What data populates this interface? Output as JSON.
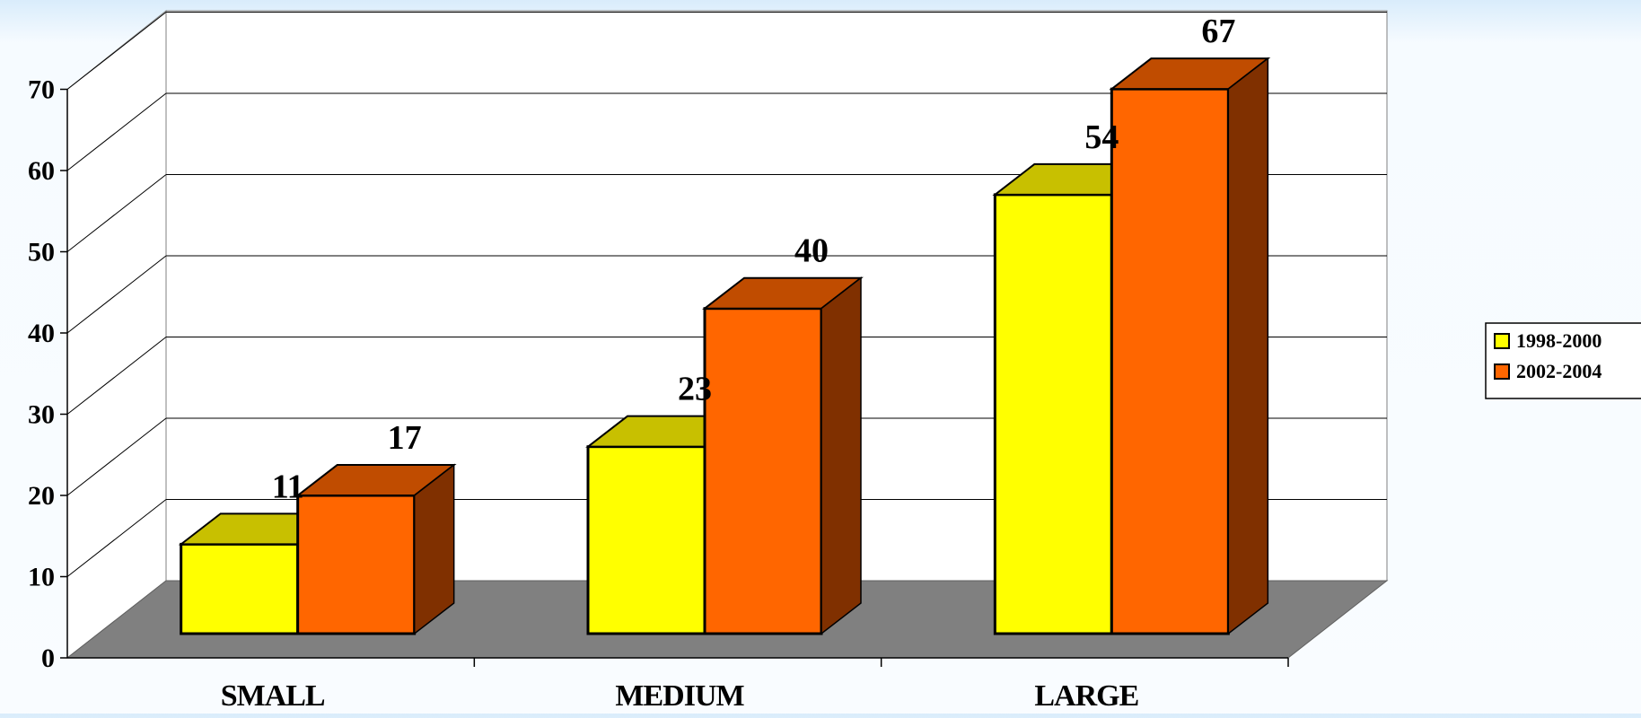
{
  "chart_data": {
    "type": "bar",
    "style": "3d-clustered-column",
    "categories": [
      "SMALL",
      "MEDIUM",
      "LARGE"
    ],
    "series": [
      {
        "name": "1998-2000",
        "values": [
          11,
          23,
          54
        ],
        "color": "#ffff00",
        "top_color": "#c8c000",
        "side_color": "#a09a00"
      },
      {
        "name": "2002-2004",
        "values": [
          17,
          40,
          67
        ],
        "color": "#ff6600",
        "top_color": "#c04c00",
        "side_color": "#803000"
      }
    ],
    "yticks": [
      0,
      10,
      20,
      30,
      40,
      50,
      60,
      70
    ],
    "ylim": [
      0,
      70
    ],
    "grid": true,
    "legend": "right",
    "floor_color": "#808080",
    "wall_color": "#ffffff"
  }
}
